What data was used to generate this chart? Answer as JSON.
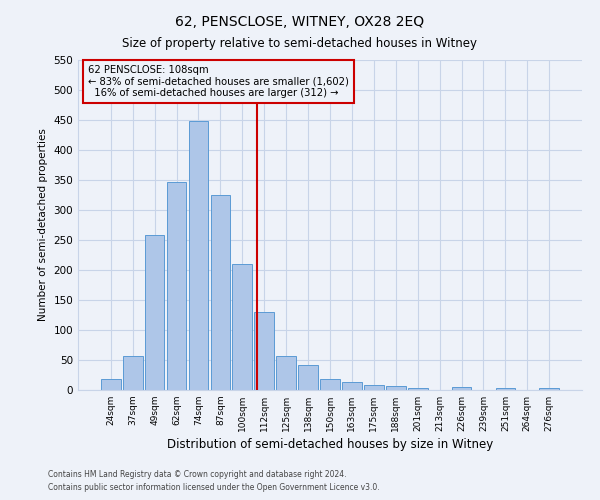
{
  "title": "62, PENSCLOSE, WITNEY, OX28 2EQ",
  "subtitle": "Size of property relative to semi-detached houses in Witney",
  "xlabel": "Distribution of semi-detached houses by size in Witney",
  "ylabel": "Number of semi-detached properties",
  "categories": [
    "24sqm",
    "37sqm",
    "49sqm",
    "62sqm",
    "74sqm",
    "87sqm",
    "100sqm",
    "112sqm",
    "125sqm",
    "138sqm",
    "150sqm",
    "163sqm",
    "175sqm",
    "188sqm",
    "201sqm",
    "213sqm",
    "226sqm",
    "239sqm",
    "251sqm",
    "264sqm",
    "276sqm"
  ],
  "values": [
    18,
    57,
    258,
    347,
    449,
    325,
    210,
    130,
    57,
    42,
    18,
    13,
    9,
    7,
    4,
    0,
    5,
    0,
    3,
    0,
    3
  ],
  "bar_color": "#aec6e8",
  "bar_edge_color": "#5b9bd5",
  "property_label": "62 PENSCLOSE: 108sqm",
  "smaller_pct": 83,
  "smaller_count": 1602,
  "larger_pct": 16,
  "larger_count": 312,
  "vline_color": "#cc0000",
  "box_edge_color": "#cc0000",
  "ylim": [
    0,
    550
  ],
  "yticks": [
    0,
    50,
    100,
    150,
    200,
    250,
    300,
    350,
    400,
    450,
    500,
    550
  ],
  "footer_line1": "Contains HM Land Registry data © Crown copyright and database right 2024.",
  "footer_line2": "Contains public sector information licensed under the Open Government Licence v3.0.",
  "bg_color": "#eef2f9",
  "grid_color": "#c8d4e8"
}
